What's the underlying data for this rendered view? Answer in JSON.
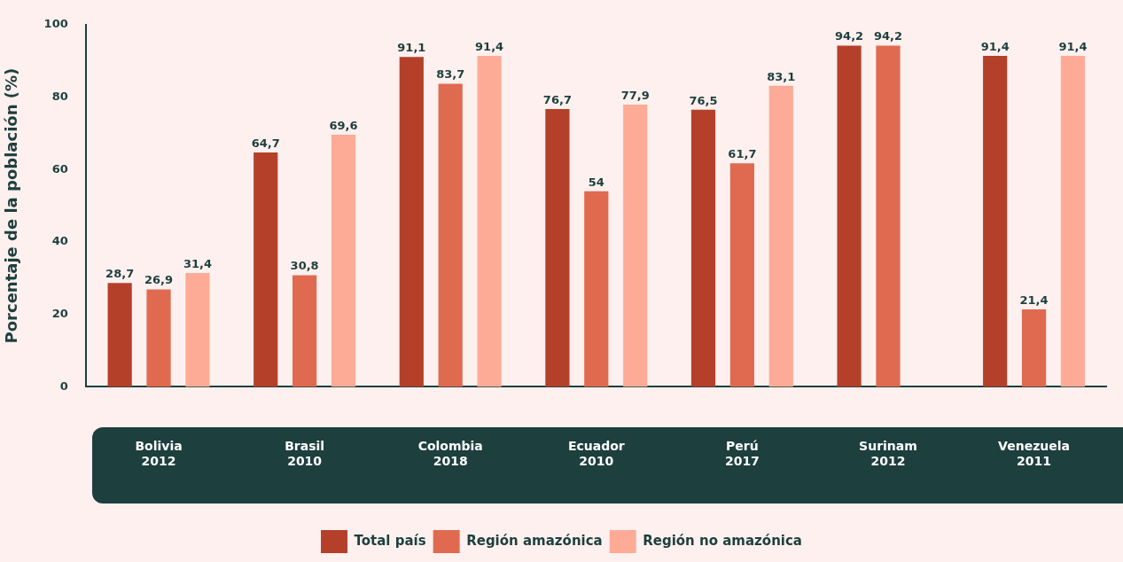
{
  "chart_data": {
    "type": "bar",
    "ylabel": "Porcentaje de la población (%)",
    "categories": [
      "Bolivia\n2012",
      "Brasil\n2010",
      "Colombia\n2018",
      "Ecuador\n2010",
      "Perú\n2017",
      "Surinam\n2012",
      "Venezuela\n2011"
    ],
    "series": [
      {
        "name": "Total país",
        "color": "#b5402a",
        "values": [
          28.7,
          64.7,
          91.1,
          76.7,
          76.5,
          94.2,
          91.4
        ],
        "value_labels": [
          "28,7",
          "64,7",
          "91,1",
          "76,7",
          "76,5",
          "94,2",
          "91,4"
        ]
      },
      {
        "name": "Región amazónica",
        "color": "#e06a50",
        "values": [
          26.9,
          30.8,
          83.7,
          54,
          61.7,
          94.2,
          21.4
        ],
        "value_labels": [
          "26,9",
          "30,8",
          "83,7",
          "54",
          "61,7",
          "94,2",
          "21,4"
        ]
      },
      {
        "name": "Región no amazónica",
        "color": "#fdab97",
        "values": [
          31.4,
          69.6,
          91.4,
          77.9,
          83.1,
          null,
          91.4
        ],
        "value_labels": [
          "31,4",
          "69,6",
          "91,4",
          "77,9",
          "83,1",
          null,
          "91,4"
        ]
      }
    ],
    "ylim": [
      0,
      100
    ],
    "yticks": [
      0,
      20,
      40,
      60,
      80,
      100
    ],
    "grid": false,
    "legend": "bottom"
  }
}
